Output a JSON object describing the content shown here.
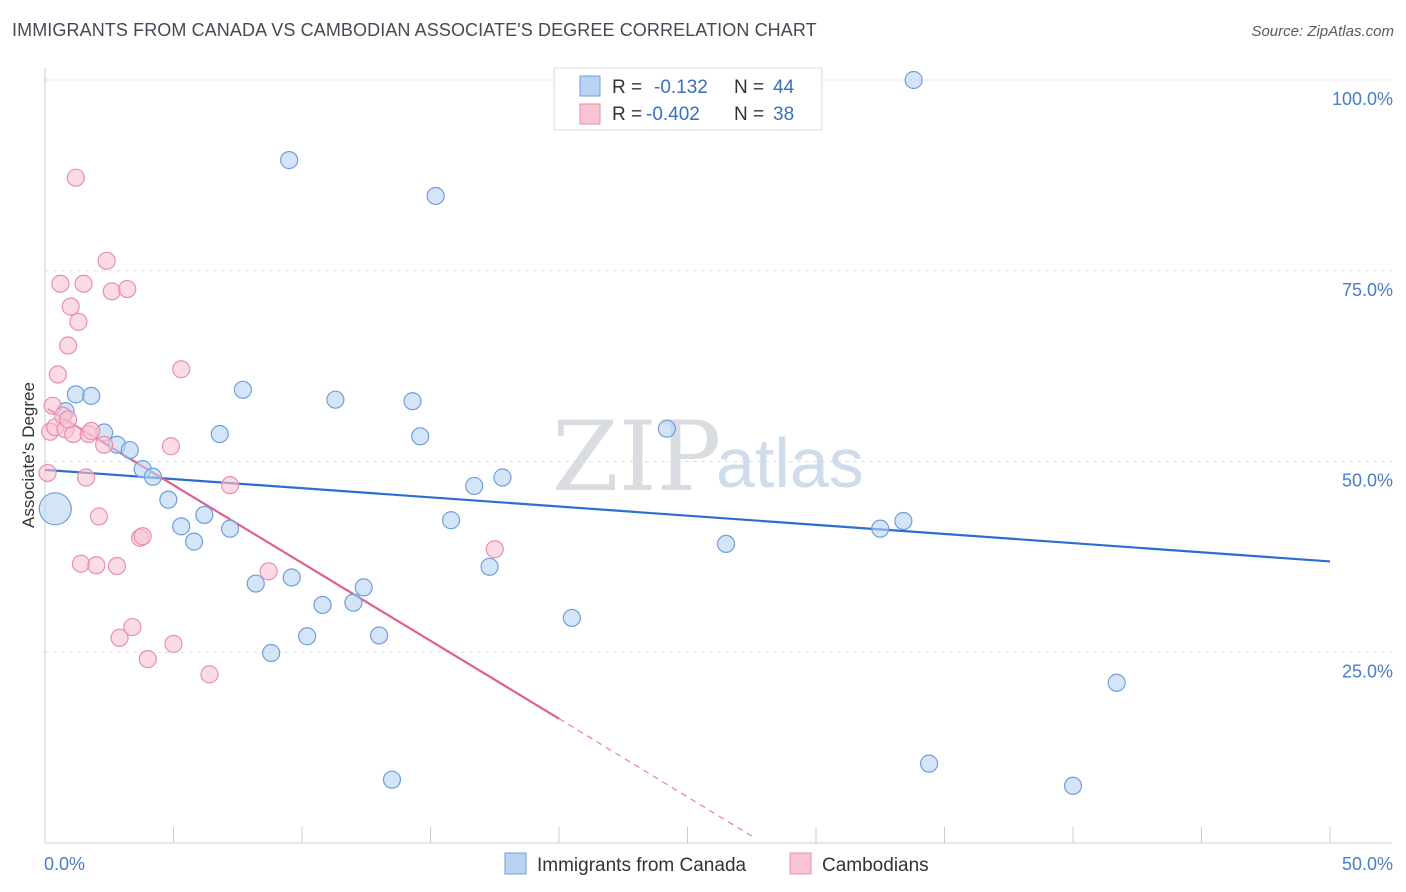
{
  "title": "IMMIGRANTS FROM CANADA VS CAMBODIAN ASSOCIATE'S DEGREE CORRELATION CHART",
  "source": "Source: ZipAtlas.com",
  "watermark": {
    "zip": "ZIP",
    "atlas": "atlas"
  },
  "colors": {
    "blue_fill": "#b8d3f3",
    "blue_stroke": "#6f9fdc",
    "blue_line": "#2a6fcf",
    "pink_fill": "#f8c3d3",
    "pink_stroke": "#e890ad",
    "pink_line": "#e0608c",
    "grid": "#dcdfe4",
    "axis": "#c9ccd1",
    "tick_text": "#4a7cc7"
  },
  "legend": {
    "rows": [
      {
        "r_label": "R =",
        "r_value": "-0.132",
        "n_label": "N =",
        "n_value": "44",
        "series": "blue"
      },
      {
        "r_label": "R =",
        "r_value": "-0.402",
        "n_label": "N =",
        "n_value": "38",
        "series": "pink"
      }
    ]
  },
  "bottom_legend": [
    {
      "label": "Immigrants from Canada",
      "series": "blue"
    },
    {
      "label": "Cambodians",
      "series": "pink"
    }
  ],
  "chart_data": {
    "type": "scatter",
    "ylabel": "Associate's Degree",
    "xlim": [
      0,
      50
    ],
    "ylim": [
      0,
      100
    ],
    "x_tick_labels": [
      {
        "value": 0,
        "label": "0.0%"
      },
      {
        "value": 50,
        "label": "50.0%"
      }
    ],
    "y_tick_labels": [
      {
        "value": 100,
        "label": "100.0%"
      },
      {
        "value": 75,
        "label": "75.0%"
      },
      {
        "value": 50,
        "label": "50.0%"
      },
      {
        "value": 25,
        "label": "25.0%"
      }
    ],
    "grid": true,
    "series": [
      {
        "name": "Immigrants from Canada",
        "color": "blue",
        "trend": {
          "x0": 0,
          "y0": 48.9,
          "x1": 50,
          "y1": 36.9
        },
        "points": [
          {
            "x": 0.4,
            "y": 43.8,
            "big": true
          },
          {
            "x": 0.8,
            "y": 56.6
          },
          {
            "x": 1.2,
            "y": 58.8
          },
          {
            "x": 1.8,
            "y": 58.6
          },
          {
            "x": 2.3,
            "y": 53.8
          },
          {
            "x": 2.8,
            "y": 52.2
          },
          {
            "x": 3.3,
            "y": 51.5
          },
          {
            "x": 3.8,
            "y": 49.0
          },
          {
            "x": 4.2,
            "y": 48.0
          },
          {
            "x": 4.8,
            "y": 45.0
          },
          {
            "x": 5.3,
            "y": 41.5
          },
          {
            "x": 5.8,
            "y": 39.5
          },
          {
            "x": 6.2,
            "y": 43.0
          },
          {
            "x": 6.8,
            "y": 53.6
          },
          {
            "x": 7.2,
            "y": 41.2
          },
          {
            "x": 7.7,
            "y": 59.4
          },
          {
            "x": 8.2,
            "y": 34.0
          },
          {
            "x": 8.8,
            "y": 24.9
          },
          {
            "x": 9.5,
            "y": 89.5
          },
          {
            "x": 9.6,
            "y": 34.8
          },
          {
            "x": 10.2,
            "y": 27.1
          },
          {
            "x": 10.8,
            "y": 31.2
          },
          {
            "x": 11.3,
            "y": 58.1
          },
          {
            "x": 12.0,
            "y": 31.5
          },
          {
            "x": 12.4,
            "y": 33.5
          },
          {
            "x": 13.0,
            "y": 27.2
          },
          {
            "x": 13.5,
            "y": 8.3
          },
          {
            "x": 14.3,
            "y": 57.9
          },
          {
            "x": 14.6,
            "y": 53.3
          },
          {
            "x": 15.2,
            "y": 84.8
          },
          {
            "x": 15.8,
            "y": 42.3
          },
          {
            "x": 16.7,
            "y": 46.8
          },
          {
            "x": 17.3,
            "y": 36.2
          },
          {
            "x": 17.8,
            "y": 47.9
          },
          {
            "x": 20.5,
            "y": 29.5
          },
          {
            "x": 24.2,
            "y": 54.3
          },
          {
            "x": 26.5,
            "y": 39.2
          },
          {
            "x": 29.6,
            "y": 100.0
          },
          {
            "x": 32.5,
            "y": 41.2
          },
          {
            "x": 33.4,
            "y": 42.2
          },
          {
            "x": 33.8,
            "y": 100.0
          },
          {
            "x": 34.4,
            "y": 10.4
          },
          {
            "x": 40.0,
            "y": 7.5
          },
          {
            "x": 41.7,
            "y": 21.0
          }
        ]
      },
      {
        "name": "Cambodians",
        "color": "pink",
        "trend": {
          "x0": 0.1,
          "y0": 56.9,
          "x1": 20,
          "y1": 16.3,
          "dash_x1": 27.5,
          "dash_y1": 0.9
        },
        "points": [
          {
            "x": 0.1,
            "y": 48.5
          },
          {
            "x": 0.2,
            "y": 53.9
          },
          {
            "x": 0.3,
            "y": 57.3
          },
          {
            "x": 0.4,
            "y": 54.5
          },
          {
            "x": 0.5,
            "y": 61.4
          },
          {
            "x": 0.6,
            "y": 73.3
          },
          {
            "x": 0.7,
            "y": 56.0
          },
          {
            "x": 0.8,
            "y": 54.2
          },
          {
            "x": 0.9,
            "y": 65.2
          },
          {
            "x": 1.0,
            "y": 70.3
          },
          {
            "x": 1.1,
            "y": 53.6
          },
          {
            "x": 1.2,
            "y": 87.2
          },
          {
            "x": 1.3,
            "y": 68.3
          },
          {
            "x": 1.4,
            "y": 36.6
          },
          {
            "x": 1.5,
            "y": 73.3
          },
          {
            "x": 1.6,
            "y": 47.9
          },
          {
            "x": 1.7,
            "y": 53.6
          },
          {
            "x": 1.8,
            "y": 54.0
          },
          {
            "x": 2.0,
            "y": 36.4
          },
          {
            "x": 2.1,
            "y": 42.8
          },
          {
            "x": 2.3,
            "y": 52.2
          },
          {
            "x": 2.4,
            "y": 76.3
          },
          {
            "x": 2.6,
            "y": 72.3
          },
          {
            "x": 2.8,
            "y": 36.3
          },
          {
            "x": 2.9,
            "y": 26.9
          },
          {
            "x": 3.2,
            "y": 72.6
          },
          {
            "x": 3.4,
            "y": 28.3
          },
          {
            "x": 3.7,
            "y": 40.0
          },
          {
            "x": 3.8,
            "y": 40.2
          },
          {
            "x": 4.0,
            "y": 24.1
          },
          {
            "x": 5.0,
            "y": 26.1
          },
          {
            "x": 5.3,
            "y": 62.1
          },
          {
            "x": 6.4,
            "y": 22.1
          },
          {
            "x": 7.2,
            "y": 46.9
          },
          {
            "x": 8.7,
            "y": 35.6
          },
          {
            "x": 17.5,
            "y": 38.5
          },
          {
            "x": 4.9,
            "y": 52.0
          },
          {
            "x": 0.9,
            "y": 55.5
          }
        ]
      }
    ]
  }
}
